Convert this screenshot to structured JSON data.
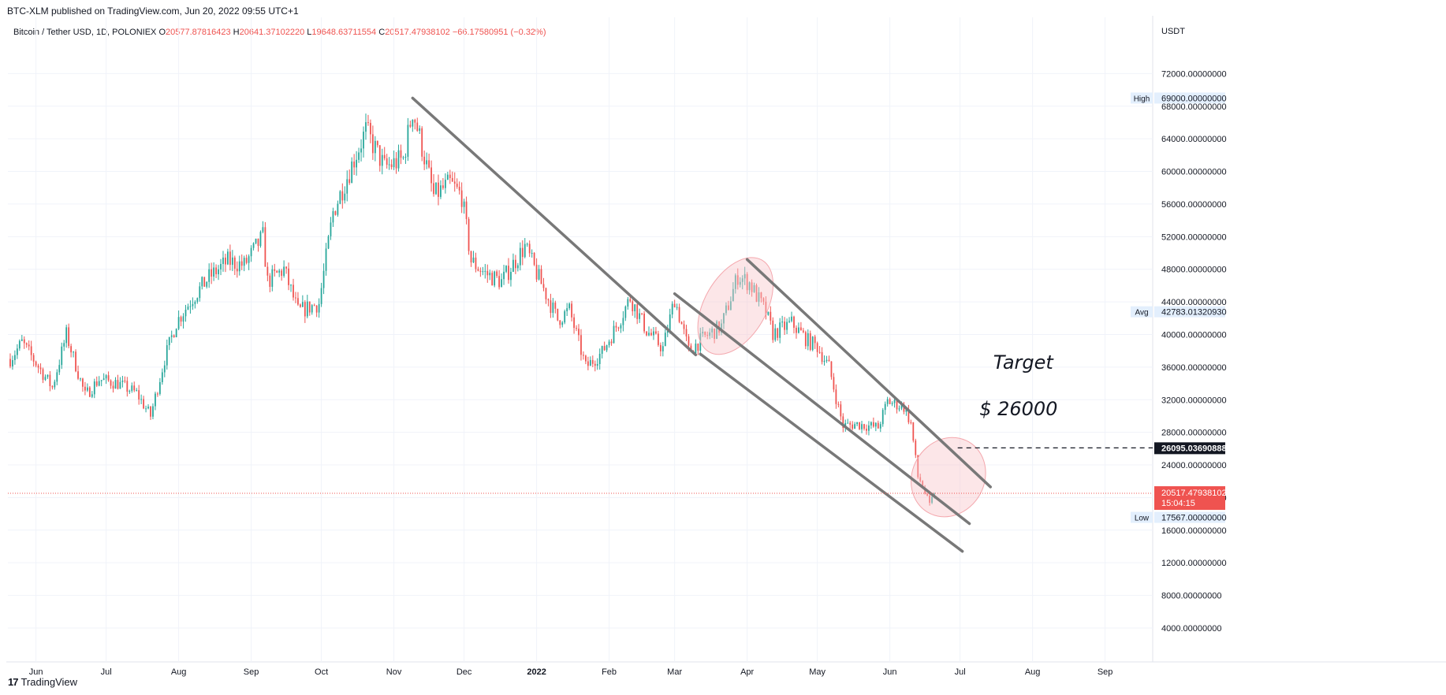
{
  "header": {
    "caption": "BTC-XLM published on TradingView.com, Jun 20, 2022 09:55 UTC+1"
  },
  "legend": {
    "symbol": "Bitcoin / Tether USD, 1D, POLONIEX",
    "open_label": "O",
    "open": "20577.87816423",
    "high_label": "H",
    "high": "20641.37102220",
    "low_label": "L",
    "low": "19648.63711554",
    "close_label": "C",
    "close": "20517.47938102",
    "change": "−66.17580951 (−0.32%)"
  },
  "footer": {
    "logo": "17",
    "brand": "TradingView"
  },
  "colors": {
    "up": "#26a69a",
    "down": "#ef5350",
    "grid": "#f0f3fa",
    "trendline": "#787878",
    "ellipse_fill": "#f8c8cc",
    "ellipse_stroke": "#f4a7ad",
    "price_line": "#ef5350",
    "badge_bg": "#e3effd"
  },
  "chart_data": {
    "type": "candlestick",
    "title": "Bitcoin / Tether USD, 1D, POLONIEX",
    "currency": "USDT",
    "ylim": [
      1000,
      76000
    ],
    "y_ticks": [
      4000,
      8000,
      12000,
      16000,
      20000,
      24000,
      28000,
      32000,
      36000,
      40000,
      44000,
      48000,
      52000,
      56000,
      60000,
      64000,
      68000,
      72000
    ],
    "y_tick_labels": [
      "4000.00000000",
      "8000.00000000",
      "12000.00000000",
      "16000.00000000",
      "20000.00000000",
      "24000.00000000",
      "28000.00000000",
      "32000.00000000",
      "36000.00000000",
      "40000.00000000",
      "44000.00000000",
      "48000.00000000",
      "52000.00000000",
      "56000.00000000",
      "60000.00000000",
      "64000.00000000",
      "68000.00000000",
      "72000.00000000"
    ],
    "x_range": [
      "2021-05-20",
      "2022-09-20"
    ],
    "x_ticks": [
      {
        "date": "2021-06-01",
        "label": "Jun"
      },
      {
        "date": "2021-07-01",
        "label": "Jul"
      },
      {
        "date": "2021-08-01",
        "label": "Aug"
      },
      {
        "date": "2021-09-01",
        "label": "Sep"
      },
      {
        "date": "2021-10-01",
        "label": "Oct"
      },
      {
        "date": "2021-11-01",
        "label": "Nov"
      },
      {
        "date": "2021-12-01",
        "label": "Dec"
      },
      {
        "date": "2022-01-01",
        "label": "2022",
        "bold": true
      },
      {
        "date": "2022-02-01",
        "label": "Feb"
      },
      {
        "date": "2022-03-01",
        "label": "Mar"
      },
      {
        "date": "2022-04-01",
        "label": "Apr"
      },
      {
        "date": "2022-05-01",
        "label": "May"
      },
      {
        "date": "2022-06-01",
        "label": "Jun"
      },
      {
        "date": "2022-07-01",
        "label": "Jul"
      },
      {
        "date": "2022-08-01",
        "label": "Aug"
      },
      {
        "date": "2022-09-01",
        "label": "Sep"
      }
    ],
    "close_anchors": [
      [
        "2021-05-21",
        37000
      ],
      [
        "2021-05-26",
        39000
      ],
      [
        "2021-06-01",
        36500
      ],
      [
        "2021-06-08",
        33500
      ],
      [
        "2021-06-14",
        40000
      ],
      [
        "2021-06-22",
        32500
      ],
      [
        "2021-06-28",
        34500
      ],
      [
        "2021-07-06",
        34000
      ],
      [
        "2021-07-14",
        32800
      ],
      [
        "2021-07-20",
        30000
      ],
      [
        "2021-07-26",
        37000
      ],
      [
        "2021-07-31",
        41500
      ],
      [
        "2021-08-07",
        44500
      ],
      [
        "2021-08-14",
        47000
      ],
      [
        "2021-08-22",
        49000
      ],
      [
        "2021-08-29",
        48500
      ],
      [
        "2021-09-06",
        52000
      ],
      [
        "2021-09-08",
        46500
      ],
      [
        "2021-09-15",
        48000
      ],
      [
        "2021-09-21",
        42800
      ],
      [
        "2021-09-30",
        43800
      ],
      [
        "2021-10-06",
        55000
      ],
      [
        "2021-10-15",
        61500
      ],
      [
        "2021-10-20",
        65000
      ],
      [
        "2021-10-28",
        60500
      ],
      [
        "2021-11-05",
        61500
      ],
      [
        "2021-11-09",
        67500
      ],
      [
        "2021-11-12",
        64200
      ],
      [
        "2021-11-18",
        57000
      ],
      [
        "2021-11-25",
        58500
      ],
      [
        "2021-11-30",
        57000
      ],
      [
        "2021-12-04",
        49000
      ],
      [
        "2021-12-10",
        47500
      ],
      [
        "2021-12-17",
        46500
      ],
      [
        "2021-12-27",
        50800
      ],
      [
        "2022-01-01",
        47500
      ],
      [
        "2022-01-10",
        41800
      ],
      [
        "2022-01-15",
        43000
      ],
      [
        "2022-01-22",
        36000
      ],
      [
        "2022-01-29",
        37800
      ],
      [
        "2022-02-05",
        41500
      ],
      [
        "2022-02-10",
        44500
      ],
      [
        "2022-02-17",
        40500
      ],
      [
        "2022-02-24",
        38300
      ],
      [
        "2022-03-01",
        44400
      ],
      [
        "2022-03-07",
        38000
      ],
      [
        "2022-03-14",
        39700
      ],
      [
        "2022-03-21",
        41000
      ],
      [
        "2022-03-28",
        47200
      ],
      [
        "2022-04-02",
        46300
      ],
      [
        "2022-04-09",
        42700
      ],
      [
        "2022-04-12",
        40100
      ],
      [
        "2022-04-20",
        41400
      ],
      [
        "2022-04-27",
        39200
      ],
      [
        "2022-05-01",
        38500
      ],
      [
        "2022-05-06",
        36000
      ],
      [
        "2022-05-10",
        31000
      ],
      [
        "2022-05-12",
        28800
      ],
      [
        "2022-05-18",
        29000
      ],
      [
        "2022-05-27",
        28600
      ],
      [
        "2022-05-31",
        31800
      ],
      [
        "2022-06-07",
        31100
      ],
      [
        "2022-06-10",
        29100
      ],
      [
        "2022-06-13",
        22500
      ],
      [
        "2022-06-14",
        22100
      ],
      [
        "2022-06-18",
        19000
      ],
      [
        "2022-06-20",
        20517
      ]
    ],
    "trendlines": [
      {
        "name": "upper-channel-long",
        "start": [
          "2021-11-09",
          69000
        ],
        "end": [
          "2022-03-10",
          37500
        ]
      },
      {
        "name": "upper-channel-short",
        "start": [
          "2022-03-01",
          45000
        ],
        "end": [
          "2022-07-05",
          16800
        ]
      },
      {
        "name": "lower-channel",
        "start": [
          "2022-03-12",
          37600
        ],
        "end": [
          "2022-07-02",
          13400
        ]
      },
      {
        "name": "recent-channel-top",
        "start": [
          "2022-04-01",
          49200
        ],
        "end": [
          "2022-07-14",
          21300
        ]
      }
    ],
    "highlight_ellipses": [
      {
        "center": [
          "2022-03-27",
          43500
        ],
        "rx_days": 6,
        "ry_price": 6500,
        "rotate": 30
      },
      {
        "center": [
          "2022-06-26",
          22500
        ],
        "rx_days": 7,
        "ry_price": 5000,
        "rotate": 30
      }
    ],
    "target_line": {
      "price": 26095.0369,
      "from": "2022-06-30",
      "label": "26095.03690888"
    },
    "annotations": [
      {
        "text": "Target",
        "date": "2022-07-28",
        "price": 35800
      },
      {
        "text": "$ 26000",
        "date": "2022-07-26",
        "price": 30100
      }
    ],
    "price_badges": [
      {
        "name": "high",
        "tag": "High",
        "value": "69000.00000000",
        "price": 69000
      },
      {
        "name": "avg",
        "tag": "Avg",
        "value": "42783.01320930",
        "price": 42783
      },
      {
        "name": "low",
        "tag": "Low",
        "value": "17567.00000000",
        "price": 17567
      }
    ],
    "last_price": {
      "value": "20517.47938102",
      "countdown": "15:04:15",
      "price": 20517.47938102
    },
    "grid": true
  }
}
